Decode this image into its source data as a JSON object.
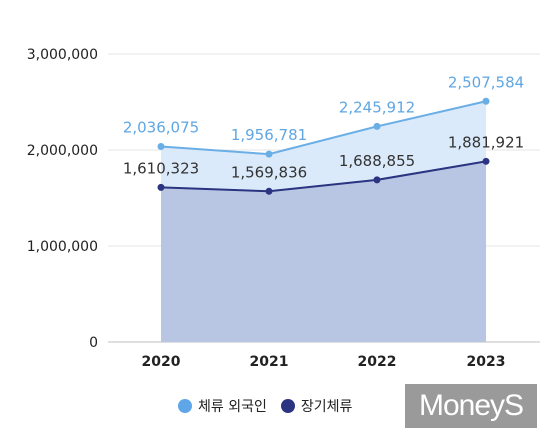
{
  "chart_data": {
    "type": "area",
    "x": [
      "2020",
      "2021",
      "2022",
      "2023"
    ],
    "series": [
      {
        "name": "체류 외국인",
        "values": [
          2036075,
          1956781,
          2245912,
          2507584
        ],
        "labels": [
          "2,036,075",
          "1,956,781",
          "2,245,912",
          "2,507,584"
        ],
        "line_color": "#6aaee6",
        "fill_color": "#dbeafb",
        "label_color": "#5fa6e3"
      },
      {
        "name": "장기체류",
        "values": [
          1610323,
          1569836,
          1688855,
          1881921
        ],
        "labels": [
          "1,610,323",
          "1,569,836",
          "1,688,855",
          "1,881,921"
        ],
        "line_color": "#2b3480",
        "fill_color": "#b9c6e3",
        "label_color": "#333333"
      }
    ],
    "ylim": [
      0,
      3000000
    ],
    "y_ticks": [
      0,
      1000000,
      2000000,
      3000000
    ],
    "y_tick_labels": [
      "0",
      "1,000,000",
      "2,000,000",
      "3,000,000"
    ],
    "grid": "horizontal",
    "legend": "bottom-center"
  },
  "legend": [
    {
      "label": "체류 외국인",
      "color": "#5fa6e8"
    },
    {
      "label": "장기체류",
      "color": "#2b3480"
    }
  ],
  "logo": {
    "text": "MoneyS"
  }
}
